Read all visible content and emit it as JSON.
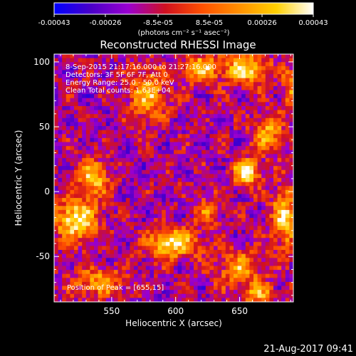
{
  "chart_data": {
    "type": "heatmap",
    "title": "Reconstructed RHESSI Image",
    "xlabel": "Heliocentric X (arcsec)",
    "ylabel": "Heliocentric Y (arcsec)",
    "xlim": [
      505,
      692
    ],
    "ylim": [
      -85,
      106
    ],
    "xticks": [
      550,
      600,
      650
    ],
    "yticks": [
      -50,
      0,
      50,
      100
    ],
    "colorbar": {
      "unit_label": "(photons cm⁻² s⁻¹ asec⁻²)",
      "range": [
        -0.00043,
        0.00043
      ],
      "tick_labels": [
        "-0.00043",
        "-0.00026",
        "-8.5e-05",
        "8.5e-05",
        "0.00026",
        "0.00043"
      ],
      "tick_values": [
        -0.00043,
        -0.00026,
        -8.5e-05,
        8.5e-05,
        0.00026,
        0.00043
      ],
      "colors": [
        "#0000ff",
        "#4a00c8",
        "#9a00d0",
        "#d01020",
        "#ff5000",
        "#ff9000",
        "#ffd000",
        "#ffffff"
      ]
    },
    "info_lines": [
      " 8-Sep-2015 21:17:16.000 to 21:27:16.000",
      "Detectors: 3F 5F 6F 7F, Att 0",
      "Energy Range: 25.0 - 50.0 keV",
      "Clean     Total counts: 1.63E+04"
    ],
    "peak_label": "Position of Peak = [655,15]",
    "peak": {
      "x": 655,
      "y": 15
    },
    "sources": [
      {
        "x": 655,
        "y": 15,
        "amp": 1.0,
        "sx": 7,
        "sy": 7
      },
      {
        "x": 522,
        "y": -22,
        "amp": 0.95,
        "sx": 12,
        "sy": 11
      },
      {
        "x": 598,
        "y": -40,
        "amp": 0.9,
        "sx": 14,
        "sy": 8
      },
      {
        "x": 535,
        "y": 10,
        "amp": 0.75,
        "sx": 9,
        "sy": 10
      },
      {
        "x": 655,
        "y": 95,
        "amp": 0.8,
        "sx": 12,
        "sy": 9
      },
      {
        "x": 620,
        "y": 95,
        "amp": 0.75,
        "sx": 10,
        "sy": 8
      },
      {
        "x": 578,
        "y": 75,
        "amp": 0.7,
        "sx": 10,
        "sy": 14
      },
      {
        "x": 672,
        "y": 45,
        "amp": 0.65,
        "sx": 8,
        "sy": 10
      },
      {
        "x": 685,
        "y": -20,
        "amp": 0.75,
        "sx": 7,
        "sy": 18
      },
      {
        "x": 650,
        "y": -60,
        "amp": 0.6,
        "sx": 12,
        "sy": 10
      },
      {
        "x": 540,
        "y": -70,
        "amp": 0.6,
        "sx": 14,
        "sy": 8
      },
      {
        "x": 665,
        "y": -80,
        "amp": 0.6,
        "sx": 9,
        "sy": 6
      },
      {
        "x": 625,
        "y": -15,
        "amp": 0.45,
        "sx": 8,
        "sy": 8
      },
      {
        "x": 690,
        "y": 80,
        "amp": 0.5,
        "sx": 5,
        "sy": 12
      }
    ]
  },
  "footer": {
    "timestamp": "21-Aug-2017 09:41"
  }
}
